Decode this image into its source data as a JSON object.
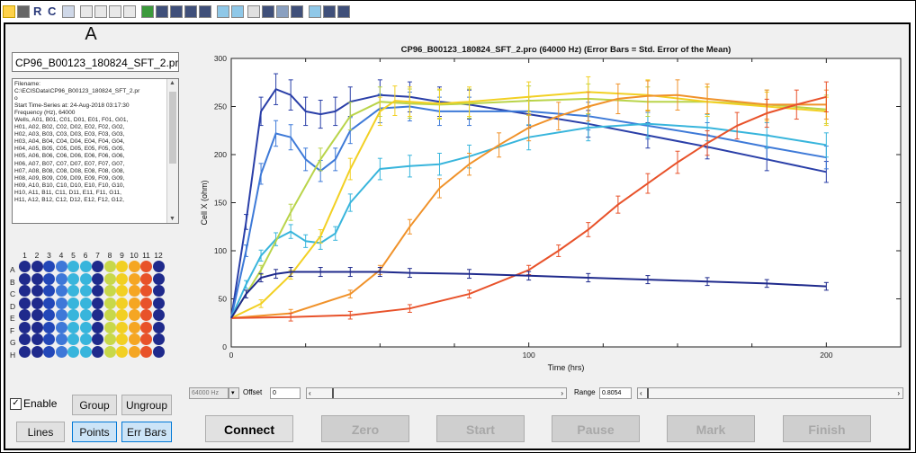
{
  "well_label": "A",
  "filename_field": "CP96_B00123_180824_SFT_2.pr",
  "info_lines": [
    "Filename:",
    "C:\\ECISData\\CP96_B00123_180824_SFT_2.pr",
    "o",
    "Start Time-Series at: 24-Aug-2018 03:17:30",
    "Frequency (Hz), 64000",
    "Wells, A01, B01, C01, D01, E01, F01, G01,",
    "H01, A02, B02, C02, D02, E02, F02, G02,",
    "H02, A03, B03, C03, D03, E03, F03, G03,",
    "H03, A04, B04, C04, D04, E04, F04, G04,",
    "H04, A05, B05, C05, D05, E05, F05, G05,",
    "H05, A06, B06, C06, D06, E06, F06, G06,",
    "H06, A07, B07, C07, D07, E07, F07, G07,",
    "H07, A08, B08, C08, D08, E08, F08, G08,",
    "H08, A09, B09, C09, D09, E09, F09, G09,",
    "H09, A10, B10, C10, D10, E10, F10, G10,",
    "H10, A11, B11, C11, D11, E11, F11, G11,",
    "H11, A12, B12, C12, D12, E12, F12, G12,"
  ],
  "plate": {
    "column_labels": [
      "1",
      "2",
      "3",
      "4",
      "5",
      "6",
      "7",
      "8",
      "9",
      "10",
      "11",
      "12"
    ],
    "row_labels": [
      "A",
      "B",
      "C",
      "D",
      "E",
      "F",
      "G",
      "H"
    ],
    "colors_by_column": [
      "#1f2a8c",
      "#1f2a8c",
      "#2347b8",
      "#3e78d8",
      "#38b5dc",
      "#38b5dc",
      "#1f2a8c",
      "#c8d84a",
      "#f2d023",
      "#f5a623",
      "#e8522a",
      "#1f2a8c"
    ]
  },
  "enable": {
    "label": "Enable",
    "checked": true
  },
  "buttons": {
    "group": "Group",
    "ungroup": "Ungroup",
    "lines": "Lines",
    "points": "Points",
    "err_bars": "Err Bars"
  },
  "controls": {
    "frequency_select": "64000 Hz",
    "offset_label": "Offset",
    "offset_value": "0",
    "range_label": "Range",
    "range_value": "0.8054"
  },
  "actions": {
    "connect": "Connect",
    "zero": "Zero",
    "start": "Start",
    "pause": "Pause",
    "mark": "Mark",
    "finish": "Finish"
  },
  "toolbar": {
    "r_label": "R",
    "c_label": "C"
  },
  "chart_data": {
    "type": "line",
    "title": "CP96_B00123_180824_SFT_2.pro (64000 Hz) (Error Bars = Std. Error of the Mean)",
    "xlabel": "Time (hrs)",
    "ylabel": "Cell X (ohm)",
    "xlim": [
      0,
      225
    ],
    "ylim": [
      0,
      300
    ],
    "xticks": [
      0,
      100,
      200
    ],
    "yticks": [
      0,
      50,
      100,
      150,
      200,
      250,
      300
    ],
    "grid": false,
    "error_bars": true,
    "series": [
      {
        "color": "#2a3fa8",
        "x": [
          0,
          5,
          10,
          15,
          20,
          25,
          30,
          35,
          40,
          50,
          60,
          70,
          80,
          100,
          120,
          140,
          160,
          180,
          200
        ],
        "y": [
          30,
          130,
          245,
          268,
          262,
          245,
          242,
          245,
          255,
          262,
          260,
          255,
          252,
          242,
          232,
          220,
          208,
          195,
          182
        ]
      },
      {
        "color": "#3e7ad8",
        "x": [
          0,
          5,
          10,
          15,
          20,
          25,
          30,
          35,
          40,
          50,
          60,
          70,
          80,
          100,
          120,
          140,
          160,
          180,
          200
        ],
        "y": [
          30,
          100,
          180,
          222,
          218,
          195,
          183,
          195,
          225,
          248,
          250,
          245,
          245,
          245,
          240,
          230,
          220,
          208,
          197
        ]
      },
      {
        "color": "#38b5dc",
        "x": [
          0,
          5,
          10,
          15,
          20,
          25,
          30,
          35,
          40,
          50,
          60,
          70,
          80,
          100,
          120,
          140,
          160,
          180,
          200
        ],
        "y": [
          30,
          65,
          95,
          112,
          120,
          110,
          108,
          118,
          150,
          185,
          188,
          190,
          198,
          218,
          228,
          232,
          228,
          220,
          210
        ]
      },
      {
        "color": "#b9d44a",
        "x": [
          0,
          10,
          20,
          30,
          40,
          50,
          60,
          70,
          80,
          100,
          120,
          140,
          160,
          180,
          200
        ],
        "y": [
          30,
          80,
          140,
          195,
          240,
          255,
          253,
          252,
          253,
          256,
          258,
          255,
          255,
          252,
          247
        ]
      },
      {
        "color": "#f2d023",
        "x": [
          0,
          10,
          20,
          30,
          40,
          50,
          55,
          60,
          70,
          80,
          100,
          120,
          140,
          160,
          180,
          200
        ],
        "y": [
          30,
          45,
          75,
          115,
          185,
          245,
          256,
          255,
          253,
          255,
          260,
          265,
          262,
          255,
          250,
          245
        ]
      },
      {
        "color": "#f0922a",
        "x": [
          0,
          20,
          40,
          50,
          60,
          70,
          80,
          90,
          100,
          110,
          120,
          130,
          140,
          150,
          160,
          180,
          200
        ],
        "y": [
          30,
          35,
          55,
          80,
          125,
          165,
          190,
          210,
          228,
          240,
          250,
          258,
          261,
          262,
          258,
          252,
          252
        ]
      },
      {
        "color": "#e8522a",
        "x": [
          0,
          20,
          40,
          60,
          80,
          100,
          110,
          120,
          130,
          140,
          150,
          160,
          170,
          180,
          190,
          200
        ],
        "y": [
          30,
          31,
          33,
          40,
          55,
          80,
          100,
          122,
          148,
          170,
          192,
          212,
          230,
          243,
          252,
          260
        ]
      },
      {
        "color": "#1f2a8c",
        "x": [
          0,
          5,
          10,
          15,
          20,
          30,
          40,
          50,
          60,
          80,
          100,
          120,
          140,
          160,
          180,
          200
        ],
        "y": [
          30,
          55,
          72,
          76,
          78,
          78,
          78,
          78,
          77,
          76,
          74,
          72,
          70,
          68,
          66,
          63
        ]
      }
    ]
  }
}
